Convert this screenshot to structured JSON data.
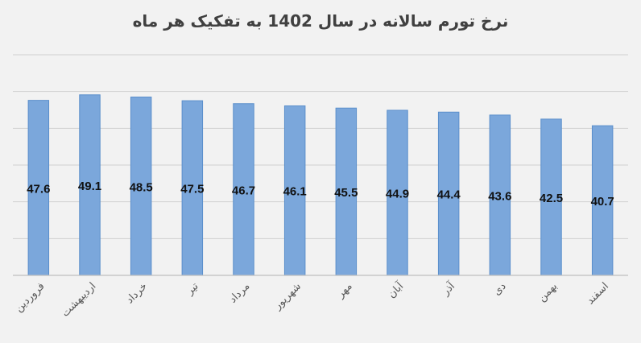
{
  "chart_data": {
    "type": "bar",
    "title": "نرخ تورم سالانه در سال 1402 به تفکیک هر ماه",
    "categories": [
      "فروردین",
      "اردیبهشت",
      "خرداد",
      "تیر",
      "مرداد",
      "شهریور",
      "مهر",
      "آبان",
      "آذر",
      "دی",
      "بهمن",
      "اسفند"
    ],
    "values": [
      47.6,
      49.1,
      48.5,
      47.5,
      46.7,
      46.1,
      45.5,
      44.9,
      44.4,
      43.6,
      42.5,
      40.7
    ],
    "value_labels": [
      "47.6",
      "49.1",
      "48.5",
      "47.5",
      "46.7",
      "46.1",
      "45.5",
      "44.9",
      "44.4",
      "43.6",
      "42.5",
      "40.7"
    ],
    "xlabel": "",
    "ylabel": "",
    "ylim": [
      0,
      60
    ],
    "grid": true,
    "legend": "none",
    "colors": {
      "bar": "#7ba7db",
      "bar_edge": "#5b8fcb",
      "grid": "#d0d0d0",
      "axis": "#bfbfbf",
      "background": "#f2f2f2"
    }
  }
}
